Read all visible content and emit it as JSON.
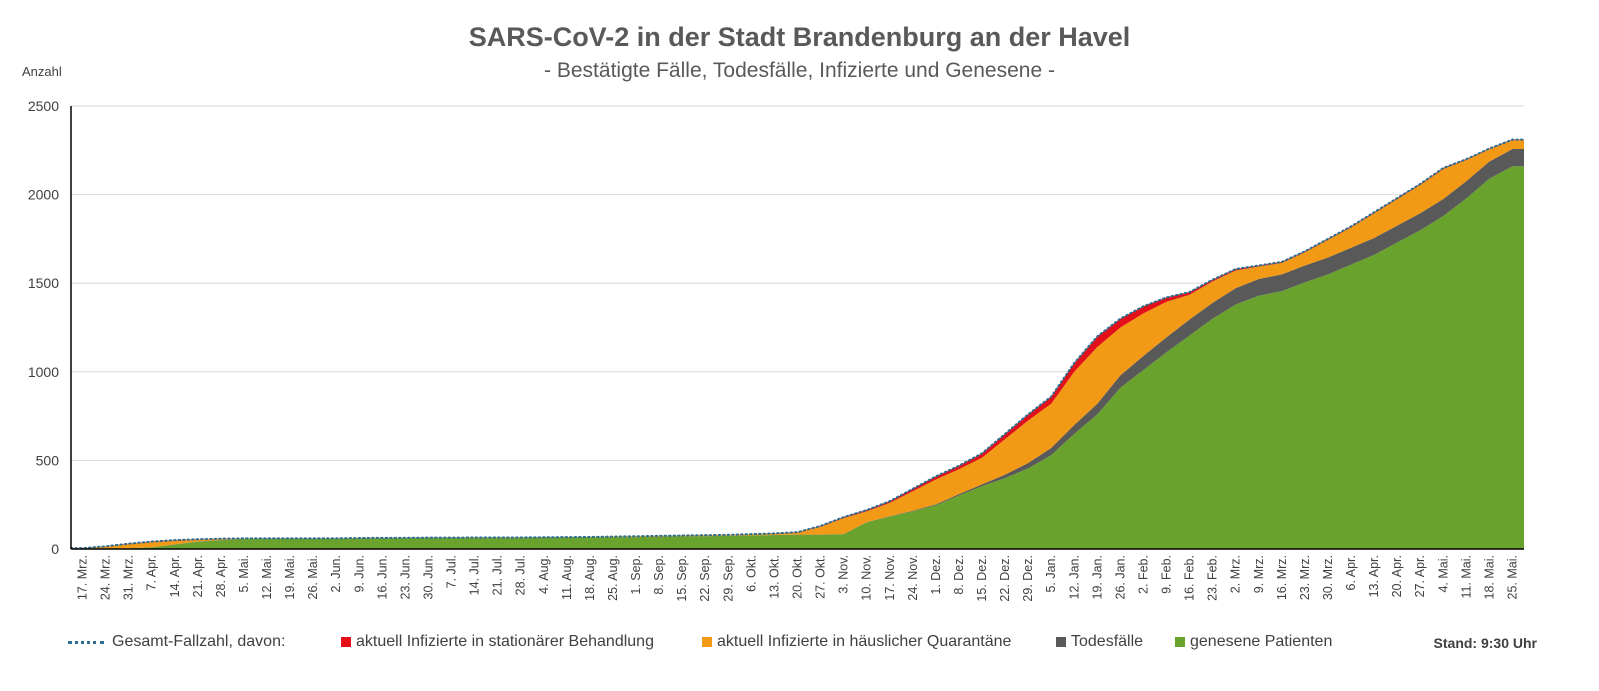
{
  "chart_data": {
    "type": "area",
    "title": "SARS-CoV-2 in der Stadt Brandenburg an der Havel",
    "subtitle": "- Bestätigte Fälle, Todesfälle, Infizierte und Genesene -",
    "ylabel": "Anzahl",
    "ylim": [
      0,
      2500
    ],
    "yticks": [
      0,
      500,
      1000,
      1500,
      2000,
      2500
    ],
    "grid": true,
    "legend_position": "bottom",
    "x_tick_labels": [
      "17. Mrz.",
      "24. Mrz.",
      "31. Mrz.",
      "7. Apr.",
      "14. Apr.",
      "21. Apr.",
      "28. Apr.",
      "5. Mai.",
      "12. Mai.",
      "19. Mai.",
      "26. Mai.",
      "2. Jun.",
      "9. Jun.",
      "16. Jun.",
      "23. Jun.",
      "30. Jun.",
      "7. Jul.",
      "14. Jul.",
      "21. Jul.",
      "28. Jul.",
      "4. Aug.",
      "11. Aug.",
      "18. Aug.",
      "25. Aug.",
      "1. Sep.",
      "8. Sep.",
      "15. Sep.",
      "22. Sep.",
      "29. Sep.",
      "6. Okt.",
      "13. Okt.",
      "20. Okt.",
      "27. Okt.",
      "3. Nov.",
      "10. Nov.",
      "17. Nov.",
      "24. Nov.",
      "1. Dez.",
      "8. Dez.",
      "15. Dez.",
      "22. Dez.",
      "29. Dez.",
      "5. Jan.",
      "12. Jan.",
      "19. Jan.",
      "26. Jan.",
      "2. Feb.",
      "9. Feb.",
      "16. Feb.",
      "23. Feb.",
      "2. Mrz.",
      "9. Mrz.",
      "16. Mrz.",
      "23. Mrz.",
      "30. Mrz.",
      "6. Apr.",
      "13. Apr.",
      "20. Apr.",
      "27. Apr.",
      "4. Mai.",
      "11. Mai.",
      "18. Mai.",
      "25. Mai."
    ],
    "series": [
      {
        "name": "Gesamt-Fallzahl, davon:",
        "style": "dotted-line",
        "color": "#2e6e8e",
        "values": [
          5,
          15,
          30,
          42,
          50,
          55,
          58,
          60,
          60,
          60,
          60,
          60,
          62,
          63,
          63,
          64,
          64,
          65,
          65,
          65,
          66,
          67,
          68,
          70,
          72,
          74,
          76,
          78,
          80,
          84,
          88,
          95,
          130,
          180,
          220,
          270,
          340,
          410,
          470,
          540,
          650,
          760,
          860,
          1050,
          1200,
          1300,
          1370,
          1420,
          1450,
          1520,
          1580,
          1600,
          1620,
          1680,
          1750,
          1820,
          1900,
          1980,
          2060,
          2150,
          2200,
          2260,
          2310
        ]
      },
      {
        "name": "aktuell Infizierte in stationärer Behandlung",
        "style": "stacked-area",
        "color": "#e3101a",
        "values": [
          0,
          1,
          2,
          2,
          2,
          1,
          1,
          0,
          0,
          0,
          0,
          0,
          0,
          0,
          0,
          0,
          0,
          0,
          0,
          0,
          0,
          0,
          0,
          0,
          0,
          0,
          0,
          0,
          0,
          0,
          1,
          2,
          4,
          6,
          8,
          10,
          14,
          18,
          20,
          25,
          30,
          35,
          40,
          50,
          60,
          50,
          40,
          25,
          15,
          10,
          8,
          6,
          5,
          5,
          5,
          5,
          5,
          5,
          5,
          5,
          4,
          3,
          3
        ]
      },
      {
        "name": "aktuell Infizierte in häuslicher Quarantäne",
        "style": "stacked-area",
        "color": "#f29a16",
        "values": [
          4,
          12,
          24,
          30,
          22,
          12,
          6,
          3,
          1,
          1,
          1,
          1,
          1,
          1,
          0,
          0,
          0,
          0,
          0,
          0,
          0,
          1,
          2,
          3,
          4,
          4,
          4,
          5,
          5,
          7,
          8,
          12,
          45,
          90,
          60,
          75,
          110,
          140,
          140,
          150,
          200,
          240,
          250,
          300,
          320,
          270,
          240,
          200,
          140,
          120,
          100,
          70,
          65,
          75,
          100,
          115,
          140,
          150,
          160,
          170,
          120,
          70,
          50
        ]
      },
      {
        "name": "Todesfälle",
        "style": "stacked-area",
        "color": "#595959",
        "values": [
          0,
          0,
          0,
          0,
          1,
          1,
          1,
          1,
          1,
          1,
          1,
          1,
          1,
          1,
          1,
          1,
          1,
          1,
          1,
          1,
          1,
          1,
          1,
          1,
          1,
          1,
          1,
          1,
          1,
          1,
          1,
          1,
          1,
          1,
          1,
          2,
          3,
          5,
          8,
          10,
          20,
          30,
          40,
          50,
          60,
          70,
          80,
          85,
          90,
          90,
          92,
          95,
          95,
          95,
          95,
          95,
          95,
          95,
          96,
          96,
          97,
          97,
          97
        ]
      },
      {
        "name": "genesene Patienten",
        "style": "stacked-area",
        "color": "#69a22d",
        "values": [
          1,
          2,
          4,
          10,
          25,
          41,
          50,
          56,
          58,
          58,
          58,
          58,
          60,
          61,
          62,
          63,
          63,
          64,
          64,
          64,
          65,
          65,
          65,
          66,
          67,
          69,
          71,
          72,
          74,
          76,
          78,
          80,
          80,
          83,
          151,
          183,
          213,
          247,
          302,
          355,
          400,
          455,
          530,
          650,
          760,
          910,
          1010,
          1110,
          1205,
          1300,
          1380,
          1429,
          1455,
          1505,
          1550,
          1605,
          1660,
          1730,
          1799,
          1879,
          1979,
          2090,
          2160
        ]
      }
    ]
  },
  "legend": {
    "total_label": "Gesamt-Fallzahl, davon:",
    "hospital_label": "aktuell Infizierte in stationärer Behandlung",
    "quarantine_label": "aktuell Infizierte in häuslicher Quarantäne",
    "deaths_label": "Todesfälle",
    "recovered_label": "genesene Patienten"
  },
  "stand": "Stand: 9:30 Uhr"
}
